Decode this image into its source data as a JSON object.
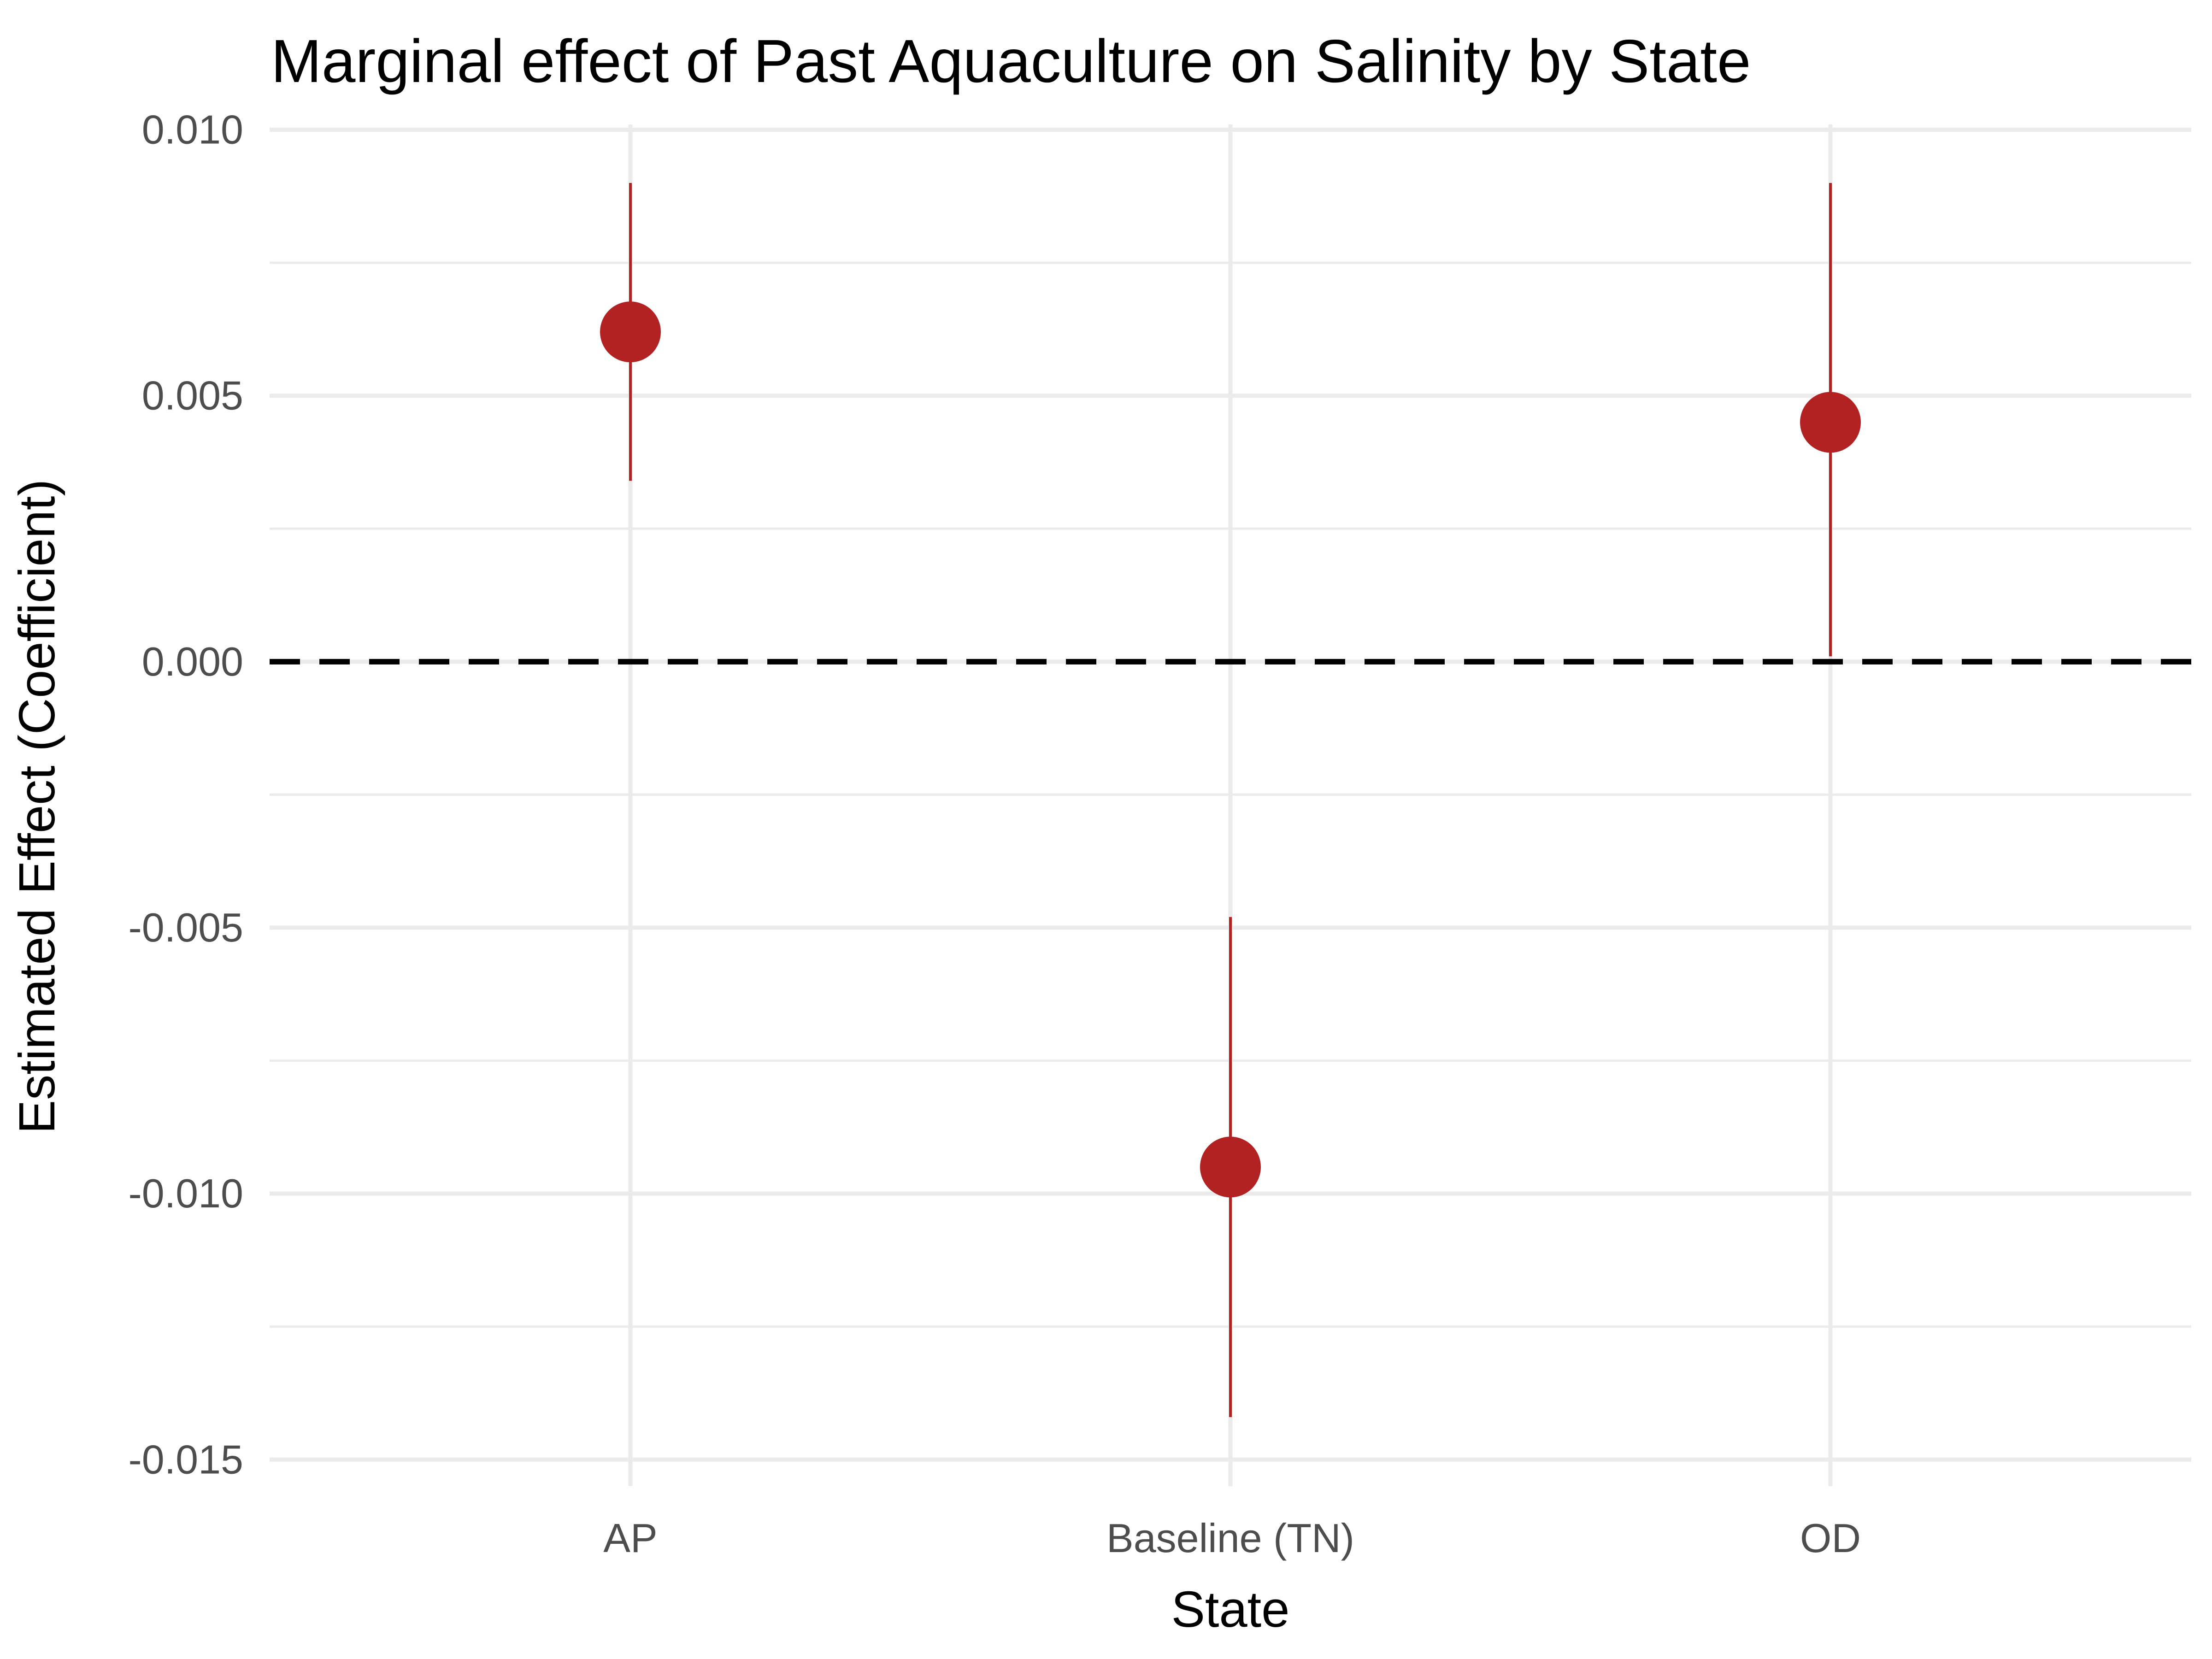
{
  "chart_data": {
    "type": "scatter",
    "title": "Marginal effect of Past Aquaculture on Salinity by State",
    "xlabel": "State",
    "ylabel": "Estimated Effect (Coefficient)",
    "categories": [
      "AP",
      "Baseline (TN)",
      "OD"
    ],
    "estimates": [
      0.0062,
      -0.0095,
      0.0045
    ],
    "ci_low": [
      0.0034,
      -0.0142,
      0.0001
    ],
    "ci_high": [
      0.009,
      -0.0048,
      0.009
    ],
    "ylim": [
      -0.0155,
      0.0101
    ],
    "y_major_ticks": [
      -0.015,
      -0.01,
      -0.005,
      0.0,
      0.005,
      0.01
    ],
    "y_tick_labels": [
      "-0.015",
      "-0.010",
      "-0.005",
      "0.000",
      "0.005",
      "0.010"
    ],
    "y_minor_ticks": [
      -0.0125,
      -0.0075,
      -0.0025,
      0.0025,
      0.0075
    ],
    "reference_line": 0,
    "grid": true,
    "legend": "none",
    "point_color": "#b22222",
    "reference_line_color": "#000000"
  }
}
